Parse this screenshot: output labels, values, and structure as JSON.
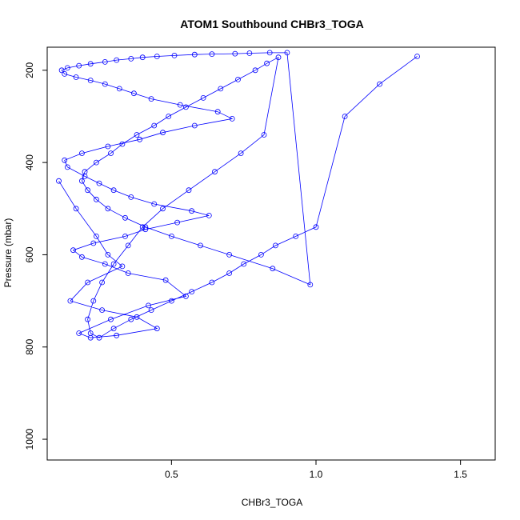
{
  "chart_data": {
    "type": "line",
    "title": "ATOM1 Southbound CHBr3_TOGA",
    "xlabel": "CHBr3_TOGA",
    "ylabel": "Pressure (mbar)",
    "xlim": [
      0.07,
      1.62
    ],
    "ylim": [
      1045,
      150
    ],
    "y_reversed": true,
    "x_ticks": [
      0.5,
      1.0,
      1.5
    ],
    "x_tick_labels": [
      "0.5",
      "1.0",
      "1.5"
    ],
    "y_ticks": [
      200,
      400,
      600,
      800,
      1000
    ],
    "y_tick_labels": [
      "200",
      "400",
      "600",
      "800",
      "1000"
    ],
    "grid": false,
    "legend": "none",
    "series_color": "#0000ff",
    "marker": "open-circle",
    "series": [
      {
        "x": [
          0.11,
          0.17,
          0.24,
          0.28,
          0.33,
          0.21,
          0.15,
          0.26,
          0.38,
          0.45,
          0.31,
          0.22,
          0.18,
          0.29,
          0.42,
          0.55,
          0.48,
          0.35,
          0.27,
          0.19,
          0.16,
          0.23,
          0.34,
          0.41,
          0.52,
          0.63,
          0.57,
          0.44,
          0.36,
          0.3,
          0.25,
          0.2,
          0.14,
          0.13,
          0.19,
          0.28,
          0.39,
          0.47,
          0.58,
          0.71,
          0.66,
          0.53,
          0.43,
          0.37,
          0.32,
          0.27,
          0.22,
          0.17,
          0.13,
          0.12,
          0.14,
          0.18,
          0.22,
          0.27,
          0.31,
          0.36,
          0.4,
          0.45,
          0.51,
          0.58,
          0.64,
          0.72,
          0.77,
          0.84,
          0.9,
          0.98,
          0.85,
          0.7,
          0.6,
          0.5,
          0.41,
          0.34,
          0.28,
          0.24,
          0.21,
          0.19,
          0.2,
          0.24,
          0.29,
          0.33,
          0.38,
          0.44,
          0.49,
          0.55,
          0.61,
          0.67,
          0.73,
          0.79,
          0.83,
          0.87,
          0.82,
          0.74,
          0.65,
          0.56,
          0.47,
          0.4,
          0.35,
          0.3,
          0.26,
          0.23,
          0.21,
          0.22,
          0.25,
          0.3,
          0.36,
          0.43,
          0.5,
          0.57,
          0.64,
          0.7,
          0.75,
          0.81,
          0.86,
          0.93,
          1.0,
          1.1,
          1.22,
          1.35
        ],
        "y": [
          440,
          500,
          560,
          600,
          625,
          660,
          700,
          720,
          735,
          760,
          775,
          780,
          770,
          740,
          710,
          690,
          655,
          640,
          620,
          605,
          590,
          575,
          560,
          545,
          530,
          515,
          505,
          490,
          475,
          460,
          445,
          430,
          410,
          395,
          380,
          365,
          350,
          335,
          320,
          305,
          290,
          275,
          262,
          250,
          240,
          230,
          222,
          215,
          208,
          200,
          195,
          190,
          186,
          182,
          178,
          175,
          172,
          170,
          168,
          166,
          165,
          164,
          163,
          162,
          162,
          665,
          630,
          600,
          580,
          560,
          540,
          520,
          500,
          480,
          460,
          440,
          420,
          400,
          380,
          360,
          340,
          320,
          300,
          280,
          260,
          240,
          220,
          200,
          185,
          172,
          340,
          380,
          420,
          460,
          500,
          540,
          580,
          620,
          660,
          700,
          740,
          770,
          780,
          760,
          740,
          720,
          700,
          680,
          660,
          640,
          620,
          600,
          580,
          560,
          540,
          300,
          230,
          170
        ]
      }
    ]
  }
}
